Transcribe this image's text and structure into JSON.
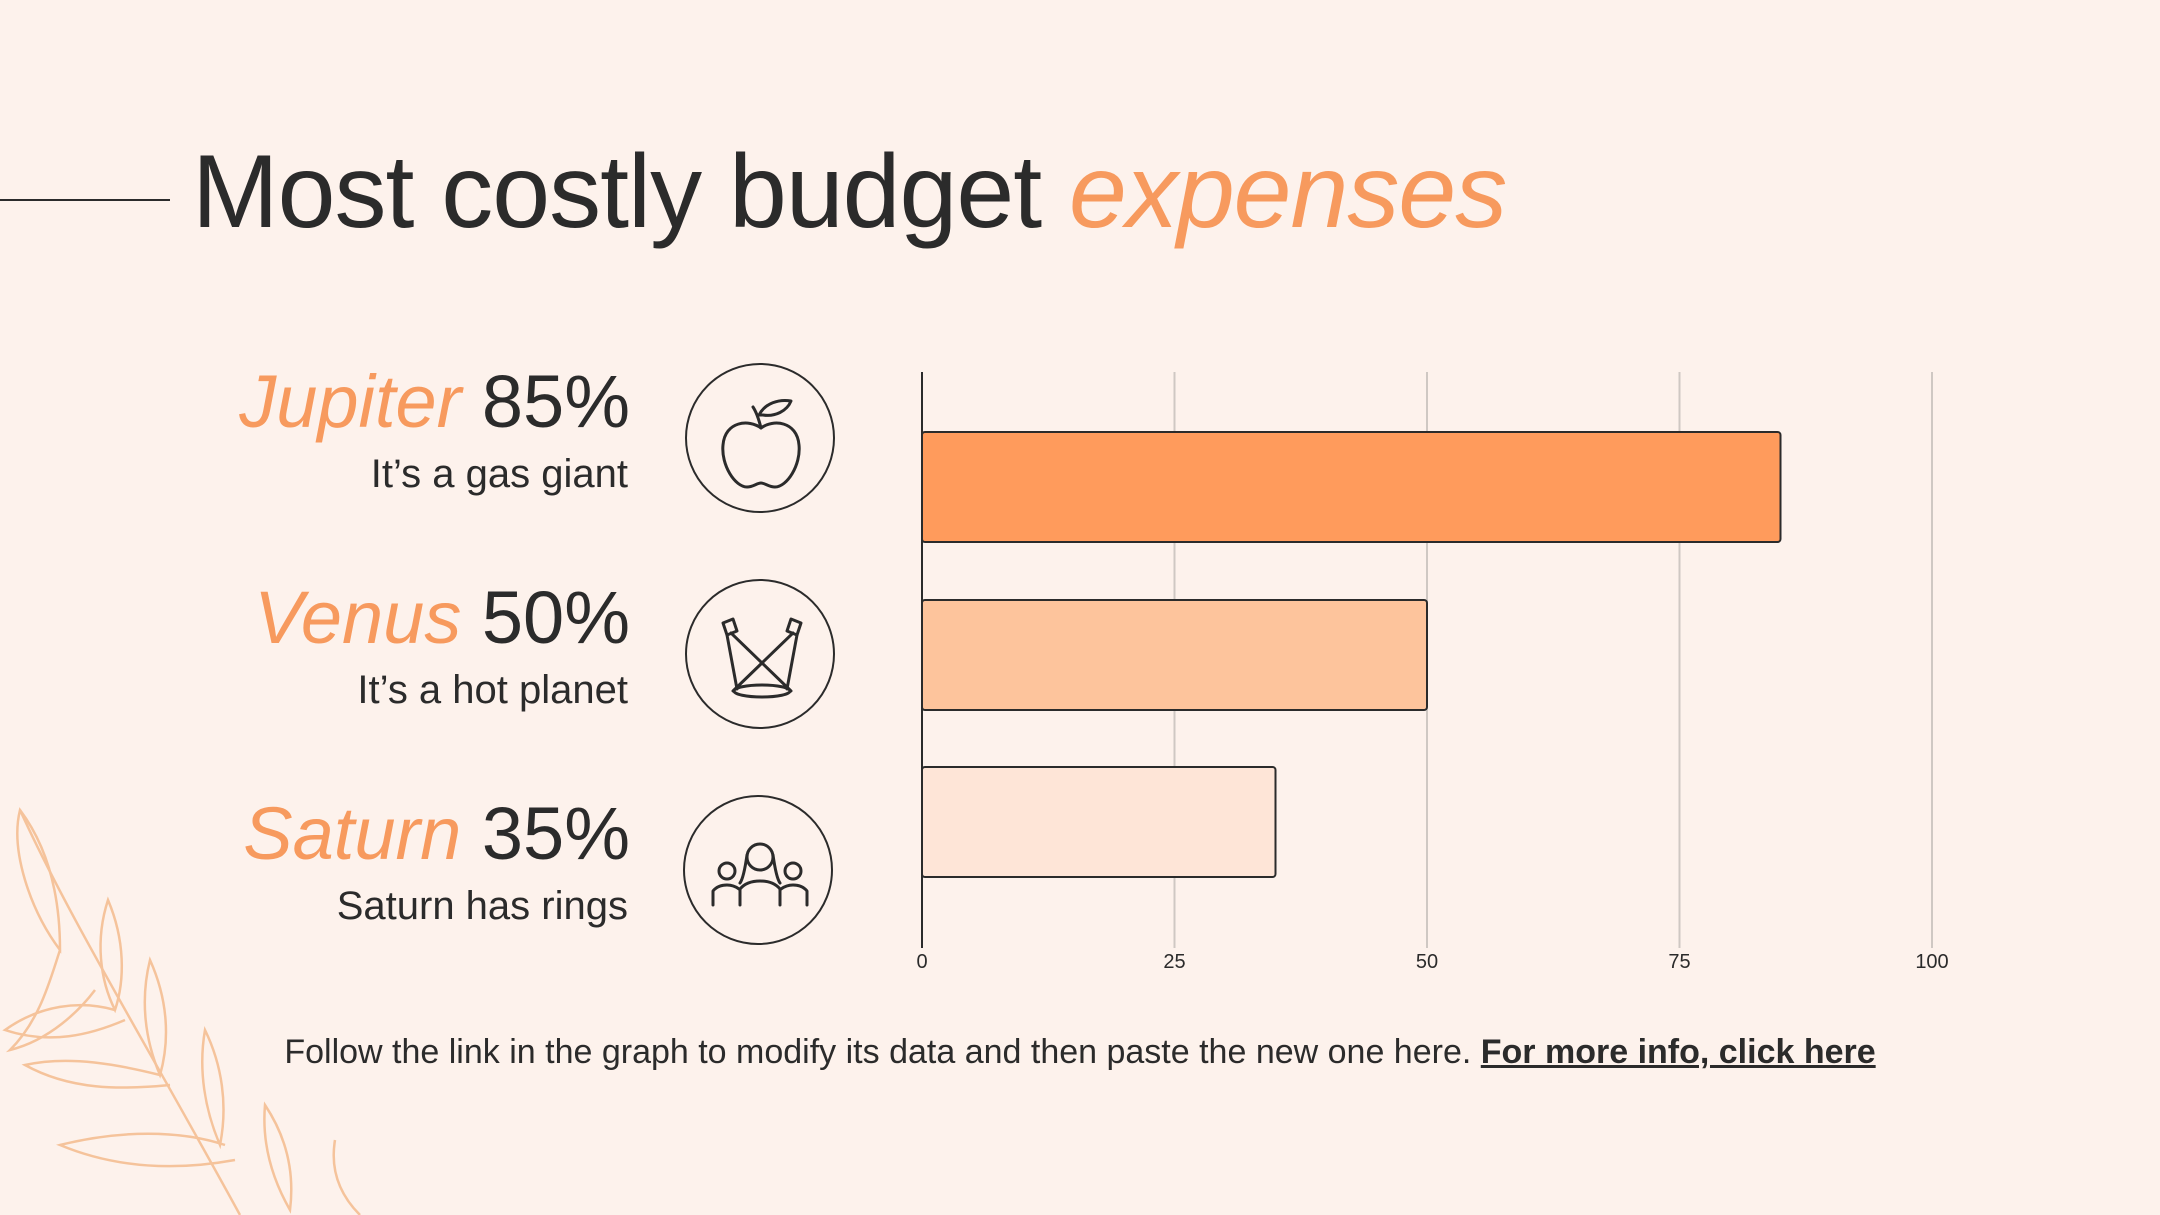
{
  "title": {
    "main": "Most costly budget",
    "accent": "expenses"
  },
  "items": [
    {
      "name": "Jupiter",
      "percent": "85%",
      "desc": "It’s a gas giant",
      "icon": "apple-icon"
    },
    {
      "name": "Venus",
      "percent": "50%",
      "desc": "It’s a hot planet",
      "icon": "spotlights-icon"
    },
    {
      "name": "Saturn",
      "percent": "35%",
      "desc": "Saturn has rings",
      "icon": "people-group-icon"
    }
  ],
  "chart_data": {
    "type": "bar",
    "orientation": "horizontal",
    "categories": [
      "Jupiter",
      "Venus",
      "Saturn"
    ],
    "values": [
      85,
      50,
      35
    ],
    "colors": [
      "#ff9b5c",
      "#fdc49c",
      "#fee5d7"
    ],
    "xlim": [
      0,
      100
    ],
    "xticks": [
      0,
      25,
      50,
      75,
      100
    ],
    "grid": true
  },
  "footer": {
    "text": "Follow the link in the graph to modify its data and then paste the new one here.",
    "link": "For more info, click here"
  },
  "colors": {
    "accent": "#f79a5e",
    "background": "#fdf2ec",
    "text": "#2b2b2b",
    "leaf": "#f5c39b"
  }
}
